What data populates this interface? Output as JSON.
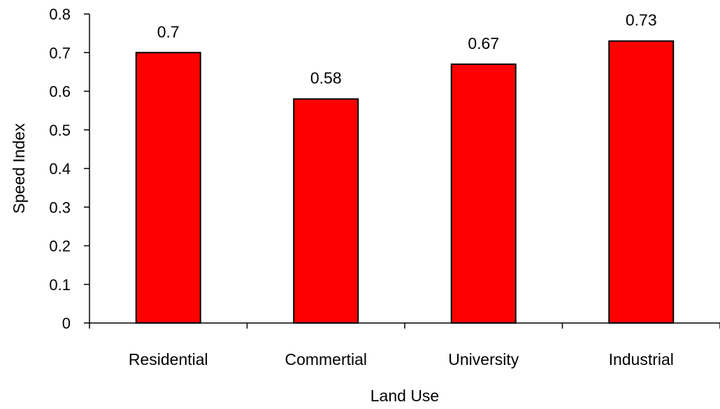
{
  "chart_data": {
    "type": "bar",
    "title": "",
    "xlabel": "Land Use",
    "ylabel": "Speed Index",
    "categories": [
      "Residential",
      "Commertial",
      "University",
      "Industrial"
    ],
    "values": [
      0.7,
      0.58,
      0.67,
      0.73
    ],
    "data_labels": [
      "0.7",
      "0.58",
      "0.67",
      "0.73"
    ],
    "ylim": [
      0,
      0.8
    ],
    "yticks": [
      "0",
      "0.1",
      "0.2",
      "0.3",
      "0.4",
      "0.5",
      "0.6",
      "0.7",
      "0.8"
    ],
    "grid": false,
    "legend": "none",
    "bar_color": "#ff0000",
    "bar_outline_color": "#000000"
  }
}
